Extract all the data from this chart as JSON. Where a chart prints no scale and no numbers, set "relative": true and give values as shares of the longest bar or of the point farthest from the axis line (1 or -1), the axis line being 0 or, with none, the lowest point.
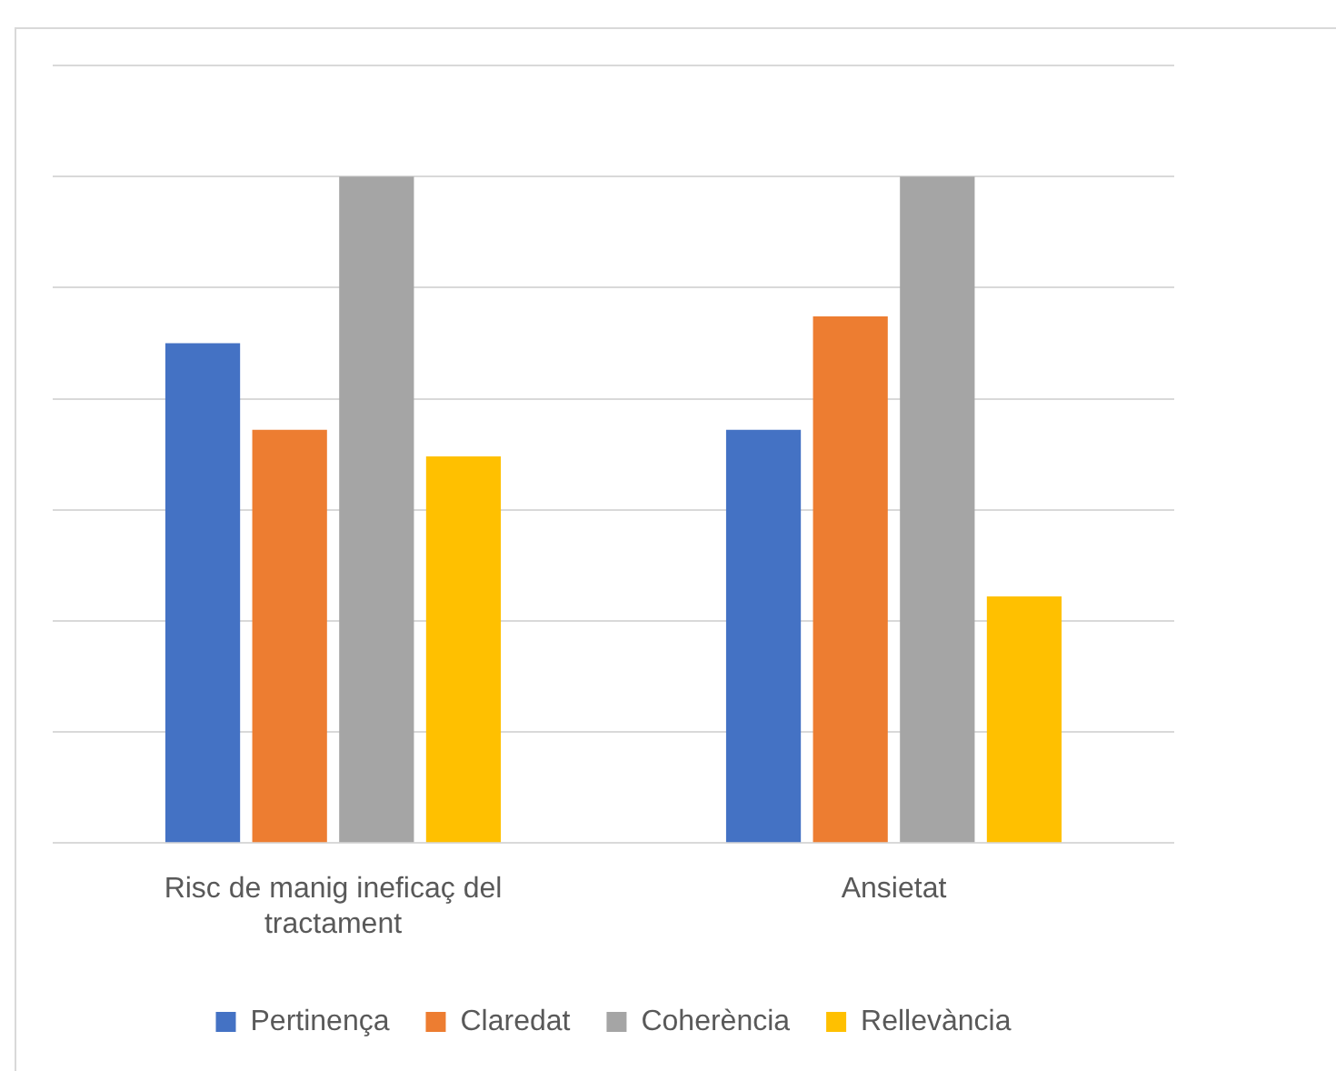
{
  "chart_data": {
    "type": "bar",
    "relative": true,
    "categories": [
      "Risc de manig ineficaç del tractament",
      "Ansietat"
    ],
    "series": [
      {
        "name": "Pertinença",
        "color": "#4472c4",
        "values": [
          0.75,
          0.62
        ]
      },
      {
        "name": "Claredat",
        "color": "#ed7d31",
        "values": [
          0.62,
          0.79
        ]
      },
      {
        "name": "Coherència",
        "color": "#a5a5a5",
        "values": [
          1,
          1
        ]
      },
      {
        "name": "Rellevància",
        "color": "#ffc000",
        "values": [
          0.58,
          0.37
        ]
      }
    ],
    "grid": "y",
    "legend": "bottom"
  }
}
